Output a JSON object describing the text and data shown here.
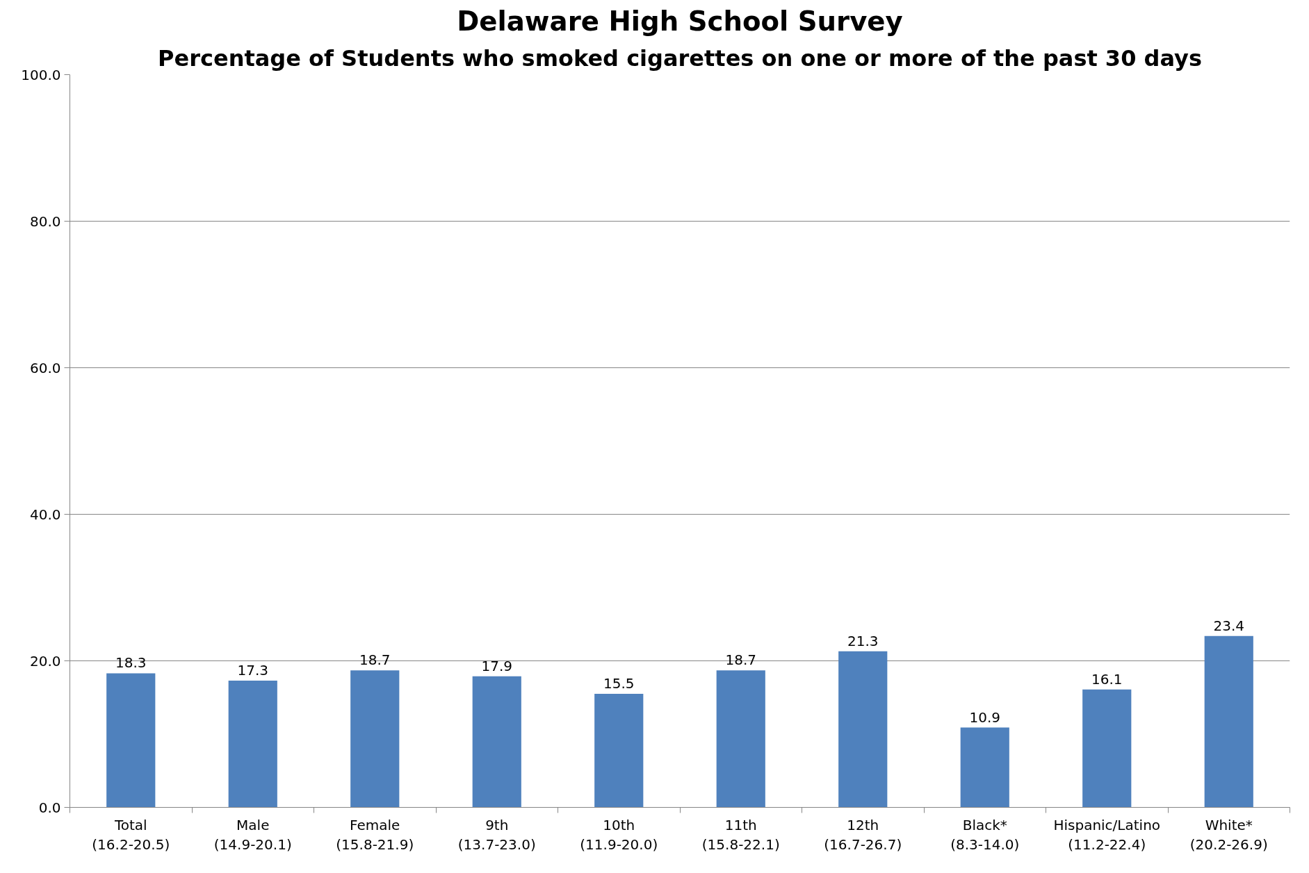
{
  "chart_data": {
    "type": "bar",
    "title": "Delaware High School Survey",
    "subtitle": "Percentage of Students who smoked cigarettes on one or more of the past 30 days",
    "categories": [
      "Total\n(16.2-20.5)",
      "Male\n(14.9-20.1)",
      "Female\n(15.8-21.9)",
      "9th\n(13.7-23.0)",
      "10th\n(11.9-20.0)",
      "11th\n(15.8-22.1)",
      "12th\n(16.7-26.7)",
      "Black*\n(8.3-14.0)",
      "Hispanic/Latino\n(11.2-22.4)",
      "White*\n(20.2-26.9)"
    ],
    "values": [
      18.3,
      17.3,
      18.7,
      17.9,
      15.5,
      18.7,
      21.3,
      10.9,
      16.1,
      23.4
    ],
    "color": "#4f81bd",
    "ylim": [
      0,
      100
    ],
    "yticks": [
      {
        "value": 0,
        "label": "0.0"
      },
      {
        "value": 20,
        "label": "20.0"
      },
      {
        "value": 40,
        "label": "40.0"
      },
      {
        "value": 60,
        "label": "60.0"
      },
      {
        "value": 80,
        "label": "80.0"
      },
      {
        "value": 100,
        "label": "100.0"
      }
    ],
    "grid": "y",
    "data_labels": true
  }
}
